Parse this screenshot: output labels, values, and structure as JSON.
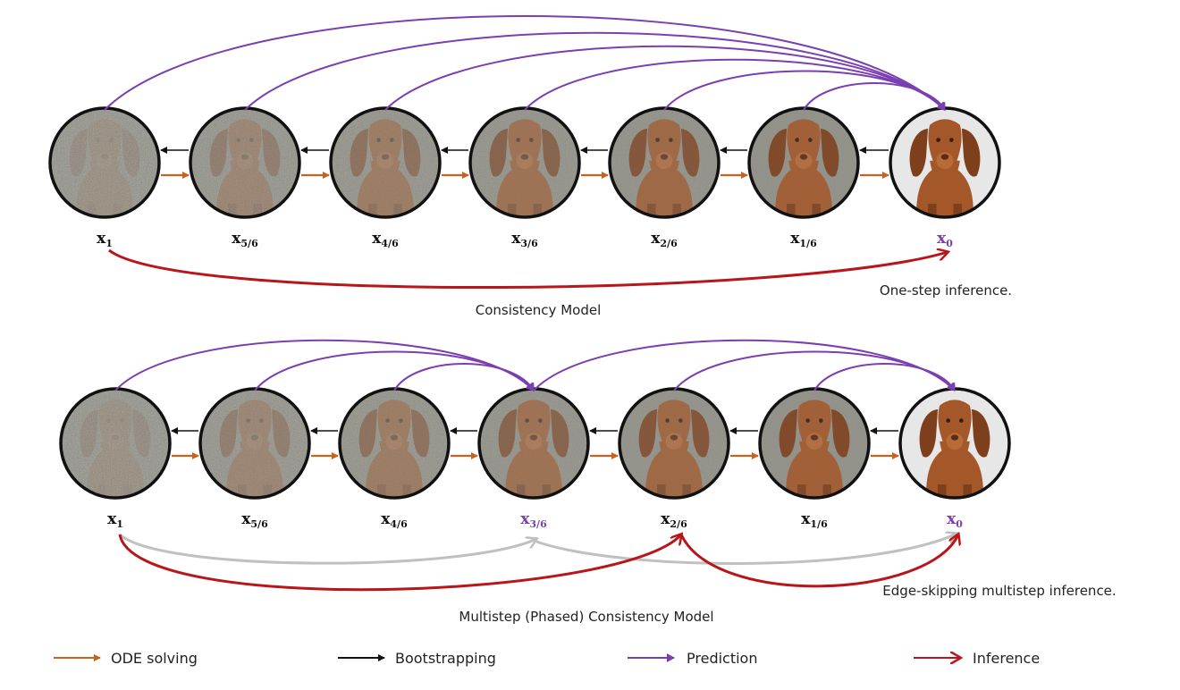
{
  "colors": {
    "ode": "#c8621f",
    "bootstrap": "#111111",
    "prediction": "#7a3fb0",
    "inference": "#b8161b",
    "skip": "#c0c0c0"
  },
  "top": {
    "labels": [
      {
        "main": "x",
        "sub": "1"
      },
      {
        "main": "x",
        "sub": "5/6"
      },
      {
        "main": "x",
        "sub": "4/6"
      },
      {
        "main": "x",
        "sub": "3/6"
      },
      {
        "main": "x",
        "sub": "2/6"
      },
      {
        "main": "x",
        "sub": "1/6"
      },
      {
        "main": "x",
        "sub": "0"
      }
    ],
    "title": "Consistency Model",
    "note": "One-step inference."
  },
  "bottom": {
    "labels": [
      {
        "main": "x",
        "sub": "1"
      },
      {
        "main": "x",
        "sub": "5/6"
      },
      {
        "main": "x",
        "sub": "4/6"
      },
      {
        "main": "x",
        "sub": "3/6"
      },
      {
        "main": "x",
        "sub": "2/6"
      },
      {
        "main": "x",
        "sub": "1/6"
      },
      {
        "main": "x",
        "sub": "0"
      }
    ],
    "title": "Multistep (Phased) Consistency Model",
    "note": "Edge-skipping multistep inference."
  },
  "legend": {
    "ode": "ODE solving",
    "bootstrap": "Bootstrapping",
    "prediction": "Prediction",
    "inference": "Inference"
  }
}
